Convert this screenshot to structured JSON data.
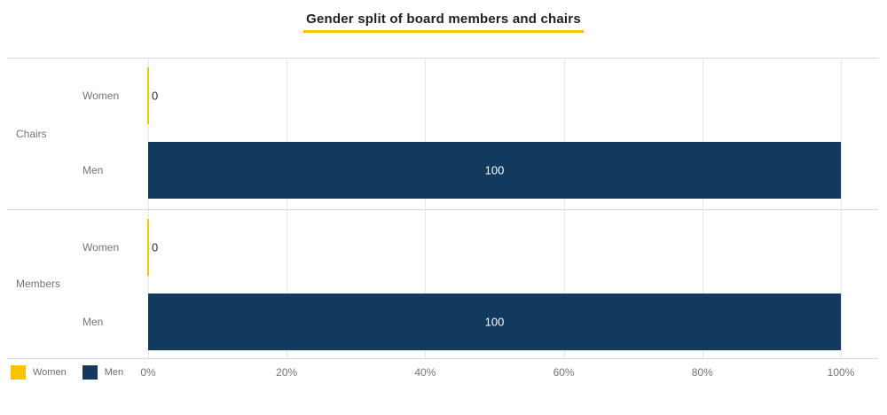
{
  "chart_data": {
    "type": "bar",
    "orientation": "horizontal",
    "title": "Gender split of board members and chairs",
    "xlabel": "",
    "ylabel": "",
    "x_axis": {
      "min": 0,
      "max": 100,
      "tick_values": [
        0,
        20,
        40,
        60,
        80,
        100
      ],
      "ticks": [
        "0%",
        "20%",
        "40%",
        "60%",
        "80%",
        "100%"
      ],
      "grid": true
    },
    "groups": [
      {
        "label": "Chairs",
        "bars": [
          {
            "category": "Women",
            "value": 0,
            "value_label": "0"
          },
          {
            "category": "Men",
            "value": 100,
            "value_label": "100"
          }
        ]
      },
      {
        "label": "Members",
        "bars": [
          {
            "category": "Women",
            "value": 0,
            "value_label": "0"
          },
          {
            "category": "Men",
            "value": 100,
            "value_label": "100"
          }
        ]
      }
    ],
    "legend": [
      {
        "label": "Women",
        "color": "#f6c500"
      },
      {
        "label": "Men",
        "color": "#12395e"
      }
    ],
    "legend_position": "bottom-left",
    "colors": {
      "women": "#f6c500",
      "men": "#12395e",
      "title_underline": "#f6c500",
      "label_gray": "#757575",
      "value_dark": "#2b2b2b",
      "value_light": "#ffffff",
      "gridline": "#e9e9e9",
      "separator": "#d9d9d9"
    }
  }
}
